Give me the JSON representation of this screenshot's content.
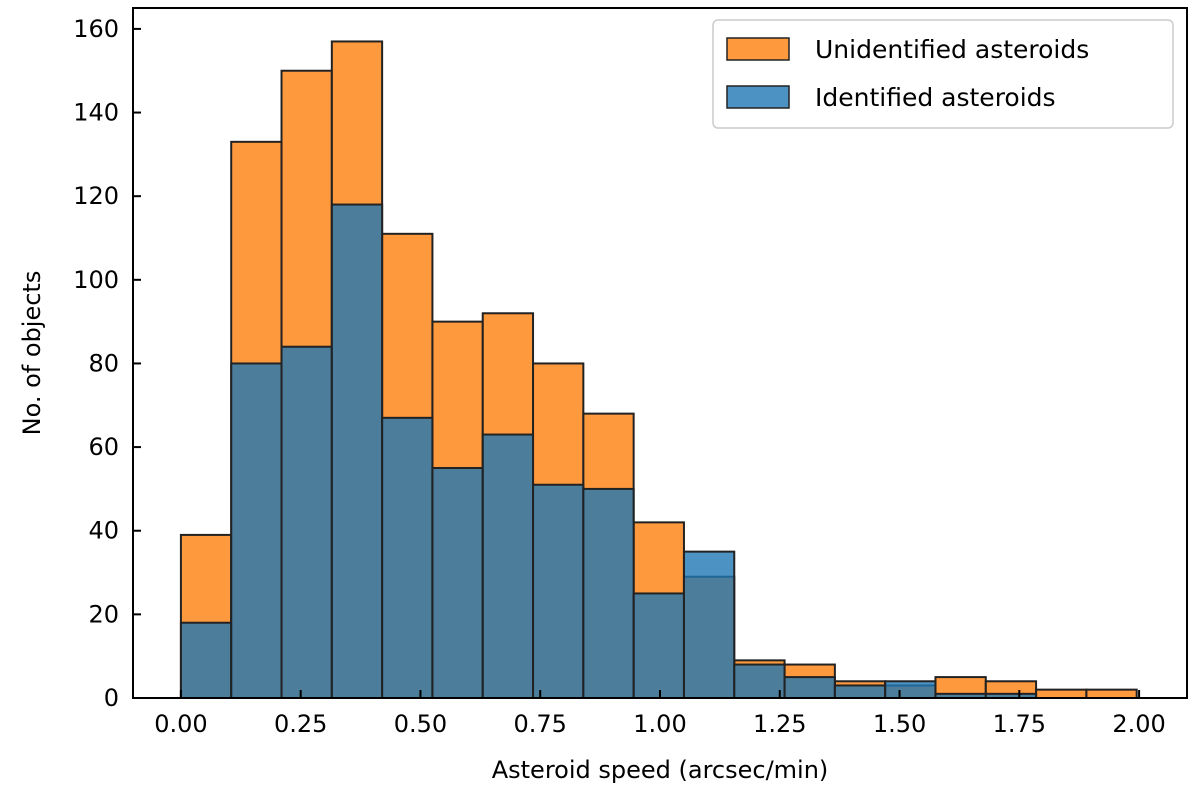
{
  "chart_data": {
    "type": "bar",
    "subtype": "overlaid-histogram",
    "title": "",
    "xlabel": "Asteroid speed (arcsec/min)",
    "ylabel": "No. of objects",
    "xlim": [
      -0.1,
      2.1
    ],
    "ylim": [
      0,
      165
    ],
    "xticks": [
      0.0,
      0.25,
      0.5,
      0.75,
      1.0,
      1.25,
      1.5,
      1.75,
      2.0
    ],
    "xtick_labels": [
      "0.00",
      "0.25",
      "0.50",
      "0.75",
      "1.00",
      "1.25",
      "1.50",
      "1.75",
      "2.00"
    ],
    "yticks": [
      0,
      20,
      40,
      60,
      80,
      100,
      120,
      140,
      160
    ],
    "ytick_labels": [
      "0",
      "20",
      "40",
      "60",
      "80",
      "100",
      "120",
      "140",
      "160"
    ],
    "bin_edges": [
      0.0,
      0.105,
      0.21,
      0.315,
      0.42,
      0.525,
      0.63,
      0.735,
      0.84,
      0.945,
      1.05,
      1.155,
      1.26,
      1.365,
      1.47,
      1.575,
      1.68,
      1.785,
      1.89,
      1.995
    ],
    "legend_position": "top-right",
    "series": [
      {
        "name": "Unidentified asteroids",
        "color": "#ff7f0e",
        "values": [
          39,
          133,
          150,
          157,
          111,
          90,
          92,
          80,
          68,
          42,
          29,
          9,
          8,
          4,
          3,
          5,
          4,
          2,
          2
        ]
      },
      {
        "name": "Identified asteroids",
        "color": "#1f77b4",
        "values": [
          18,
          80,
          84,
          118,
          67,
          55,
          63,
          51,
          50,
          25,
          35,
          8,
          5,
          3,
          4,
          1,
          1,
          0,
          0
        ]
      }
    ],
    "legend": [
      "Unidentified asteroids",
      "Identified asteroids"
    ]
  }
}
